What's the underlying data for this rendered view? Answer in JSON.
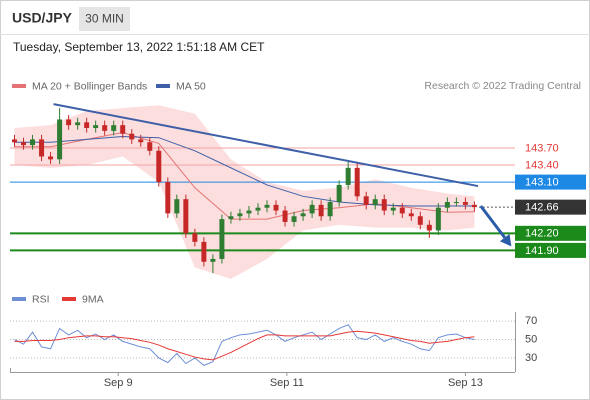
{
  "chart_data": [
    {
      "type": "candlestick",
      "title": "USD/JPY",
      "timeframe": "30 MIN",
      "subtitle": "Tuesday, September 13, 2022 1:51:18 AM CET",
      "source": "Research © 2022 Trading Central",
      "xlim": [
        -0.5,
        55.5
      ],
      "xticks": [
        {
          "value": 11.5,
          "label": "Sep 9"
        },
        {
          "value": 30.2,
          "label": "Sep 11"
        },
        {
          "value": 50.0,
          "label": "Sep 13"
        }
      ],
      "ylim": [
        141.38,
        144.63
      ],
      "up_color": "#2e7d32",
      "down_color": "#c62828",
      "open": [
        143.85,
        143.8,
        143.75,
        143.85,
        143.55,
        143.5,
        144.2,
        144.1,
        144.15,
        144.05,
        144.1,
        144.0,
        144.1,
        143.95,
        143.85,
        143.8,
        143.65,
        143.1,
        142.55,
        142.8,
        142.2,
        142.05,
        141.7,
        141.75,
        142.45,
        142.5,
        142.55,
        142.6,
        142.65,
        142.7,
        142.6,
        142.4,
        142.5,
        142.55,
        142.7,
        142.5,
        142.75,
        143.05,
        143.35,
        142.85,
        142.7,
        142.8,
        142.6,
        142.65,
        142.55,
        142.5,
        142.35,
        142.25,
        142.65,
        142.75,
        142.75,
        142.7
      ],
      "high": [
        143.93,
        143.88,
        143.93,
        143.93,
        143.63,
        144.4,
        144.28,
        144.23,
        144.23,
        144.18,
        144.18,
        144.18,
        144.18,
        144.03,
        143.93,
        143.88,
        143.73,
        143.18,
        142.88,
        142.88,
        142.28,
        142.13,
        141.83,
        142.53,
        142.58,
        142.63,
        142.68,
        142.73,
        142.78,
        142.78,
        142.68,
        142.58,
        142.63,
        142.78,
        142.78,
        142.83,
        143.13,
        143.48,
        143.43,
        142.93,
        142.88,
        142.88,
        142.73,
        142.73,
        142.63,
        142.58,
        142.43,
        142.73,
        142.83,
        142.83,
        142.83,
        142.76
      ],
      "low": [
        143.72,
        143.67,
        143.67,
        143.47,
        143.42,
        143.42,
        144.02,
        144.02,
        143.97,
        143.97,
        143.92,
        143.92,
        143.87,
        143.77,
        143.72,
        143.57,
        143.02,
        142.47,
        142.47,
        142.12,
        141.97,
        141.62,
        141.5,
        141.67,
        142.37,
        142.42,
        142.47,
        142.52,
        142.57,
        142.52,
        142.32,
        142.32,
        142.42,
        142.47,
        142.42,
        142.42,
        142.67,
        142.97,
        142.77,
        142.62,
        142.62,
        142.52,
        142.52,
        142.47,
        142.42,
        142.27,
        142.12,
        142.17,
        142.57,
        142.67,
        142.62,
        142.58
      ],
      "close": [
        143.8,
        143.75,
        143.85,
        143.55,
        143.5,
        144.2,
        144.1,
        144.15,
        144.05,
        144.1,
        144.0,
        144.1,
        143.95,
        143.85,
        143.8,
        143.65,
        143.1,
        142.55,
        142.8,
        142.2,
        142.05,
        141.7,
        141.75,
        142.45,
        142.5,
        142.55,
        142.6,
        142.65,
        142.7,
        142.6,
        142.4,
        142.5,
        142.55,
        142.7,
        142.5,
        142.75,
        143.05,
        143.35,
        142.85,
        142.7,
        142.8,
        142.6,
        142.65,
        142.55,
        142.5,
        142.35,
        142.25,
        142.65,
        142.75,
        142.75,
        142.7,
        142.66
      ],
      "overlays": [
        {
          "name": "MA 20 + Bollinger Bands",
          "color": "#e57373",
          "band_color": "#fbd0d0",
          "x": [
            0,
            4,
            8,
            12,
            16,
            20,
            24,
            28,
            32,
            36,
            40,
            44,
            48,
            51
          ],
          "values": [
            143.72,
            143.72,
            143.85,
            143.97,
            143.78,
            143.0,
            142.45,
            142.45,
            142.6,
            142.65,
            142.72,
            142.65,
            142.57,
            142.58
          ],
          "upper": [
            144.05,
            144.1,
            144.35,
            144.4,
            144.45,
            144.3,
            143.5,
            143.1,
            142.95,
            143.0,
            143.15,
            143.0,
            142.9,
            142.85
          ],
          "lower": [
            143.4,
            143.35,
            143.4,
            143.55,
            143.1,
            141.6,
            141.4,
            141.75,
            142.25,
            142.35,
            142.3,
            142.3,
            142.25,
            142.3
          ]
        },
        {
          "name": "MA 50",
          "color": "#3f5fa8",
          "x": [
            0,
            4,
            8,
            12,
            16,
            20,
            24,
            28,
            32,
            36,
            40,
            44,
            48,
            51
          ],
          "values": [
            143.8,
            143.8,
            143.85,
            143.9,
            143.88,
            143.65,
            143.35,
            143.05,
            142.85,
            142.75,
            142.7,
            142.68,
            142.68,
            142.68
          ]
        }
      ],
      "trendline": {
        "color": "#3f5fa8",
        "x": [
          4.33,
          51.4
        ],
        "values": [
          144.47,
          143.03
        ]
      },
      "projection": {
        "color": "#2a5caa",
        "x": [
          51.7,
          55.1
        ],
        "values": [
          142.68,
          141.97
        ]
      },
      "levels": [
        {
          "value": 143.7,
          "label": "143.70",
          "color": "#e53935",
          "line": "#f4a3a3",
          "boxed": false
        },
        {
          "value": 143.4,
          "label": "143.40",
          "color": "#e53935",
          "line": "#f4a3a3",
          "boxed": false
        },
        {
          "value": 143.1,
          "label": "143.10",
          "color": "#1e88e5",
          "line": "#1e88e5",
          "boxed": true
        },
        {
          "value": 142.66,
          "label": "142.66",
          "color": "#333333",
          "line": "#555555",
          "boxed": true,
          "dotted": true
        },
        {
          "value": 142.2,
          "label": "142.20",
          "color": "#1b8a1b",
          "line": "#1b8a1b",
          "boxed": true,
          "thick": true
        },
        {
          "value": 141.9,
          "label": "141.90",
          "color": "#1b8a1b",
          "line": "#1b8a1b",
          "boxed": true,
          "thick": true
        }
      ]
    },
    {
      "type": "line",
      "xlim": [
        -0.5,
        55.5
      ],
      "ylim": [
        17,
        82
      ],
      "yticks": [
        70,
        50,
        30
      ],
      "series": [
        {
          "name": "RSI",
          "color": "#6d8fd6",
          "values": [
            50,
            45,
            58,
            42,
            40,
            62,
            55,
            60,
            52,
            56,
            50,
            55,
            48,
            45,
            42,
            40,
            30,
            25,
            35,
            24,
            30,
            22,
            26,
            48,
            52,
            55,
            56,
            58,
            60,
            55,
            48,
            52,
            55,
            58,
            50,
            56,
            62,
            66,
            52,
            50,
            55,
            48,
            52,
            48,
            45,
            40,
            38,
            52,
            55,
            56,
            52,
            50
          ]
        },
        {
          "name": "9MA",
          "color": "#e53935",
          "values": [
            48,
            48,
            49,
            49,
            49,
            50,
            52,
            53,
            54,
            54,
            53,
            53,
            52,
            51,
            49,
            47,
            44,
            40,
            37,
            34,
            31,
            29,
            28,
            32,
            36,
            41,
            46,
            51,
            55,
            55,
            54,
            54,
            54,
            54,
            54,
            54,
            56,
            58,
            59,
            58,
            57,
            55,
            53,
            51,
            49,
            48,
            46,
            47,
            48,
            50,
            52,
            53
          ]
        }
      ]
    }
  ]
}
